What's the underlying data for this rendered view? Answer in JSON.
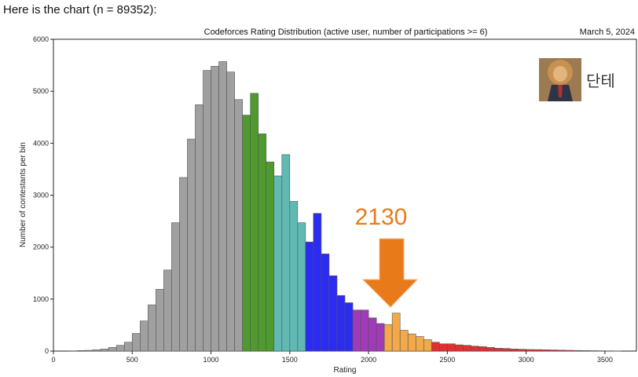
{
  "intro_text": "Here is the chart (n = 89352):",
  "chart_data": {
    "type": "bar",
    "title": "Codeforces Rating Distribution (active user, number of participations >= 6)",
    "date": "March 5, 2024",
    "xlabel": "Rating",
    "ylabel": "Number of contestants per bin",
    "xlim": [
      0,
      3700
    ],
    "ylim": [
      0,
      6000
    ],
    "xticks": [
      "0",
      "500",
      "1000",
      "1500",
      "2000",
      "2500",
      "3000",
      "3500"
    ],
    "xtick_values": [
      0,
      500,
      1000,
      1500,
      2000,
      2500,
      3000,
      3500
    ],
    "yticks": [
      "0",
      "1000",
      "2000",
      "3000",
      "4000",
      "5000",
      "6000"
    ],
    "ytick_values": [
      0,
      1000,
      2000,
      3000,
      4000,
      5000,
      6000
    ],
    "bin_width": 50,
    "bins_start": [
      100,
      150,
      200,
      250,
      300,
      350,
      400,
      450,
      500,
      550,
      600,
      650,
      700,
      750,
      800,
      850,
      900,
      950,
      1000,
      1050,
      1100,
      1150,
      1200,
      1250,
      1300,
      1350,
      1400,
      1450,
      1500,
      1550,
      1600,
      1650,
      1700,
      1750,
      1800,
      1850,
      1900,
      1950,
      2000,
      2050,
      2100,
      2150,
      2200,
      2250,
      2300,
      2350,
      2400,
      2450,
      2500,
      2550,
      2600,
      2650,
      2700,
      2750,
      2800,
      2850,
      2900,
      2950,
      3000,
      3050,
      3100,
      3150,
      3200,
      3250,
      3300,
      3350,
      3400,
      3450,
      3500,
      3550
    ],
    "values": [
      5,
      10,
      15,
      25,
      40,
      70,
      110,
      170,
      340,
      580,
      890,
      1190,
      1560,
      2470,
      3340,
      4080,
      4740,
      5400,
      5480,
      5570,
      5370,
      4840,
      4540,
      4960,
      4180,
      3640,
      3370,
      3780,
      2880,
      2470,
      2100,
      2650,
      1870,
      1450,
      1070,
      930,
      790,
      790,
      640,
      530,
      510,
      730,
      400,
      330,
      280,
      220,
      170,
      140,
      140,
      120,
      110,
      95,
      85,
      70,
      55,
      50,
      40,
      35,
      30,
      28,
      25,
      22,
      18,
      15,
      12,
      10,
      8,
      6,
      5,
      3
    ],
    "color_groups": [
      {
        "from": 0,
        "to": 1200,
        "color": "#a0a0a0"
      },
      {
        "from": 1200,
        "to": 1400,
        "color": "#4f9a2f"
      },
      {
        "from": 1400,
        "to": 1600,
        "color": "#60b9b2"
      },
      {
        "from": 1600,
        "to": 1900,
        "color": "#2b2bf2"
      },
      {
        "from": 1900,
        "to": 2100,
        "color": "#a03ab8"
      },
      {
        "from": 2100,
        "to": 2400,
        "color": "#f3a94a"
      },
      {
        "from": 2400,
        "to": 4000,
        "color": "#e03030"
      }
    ],
    "annotation": {
      "text": "2130",
      "x_value": 2130,
      "color": "#e87a1a"
    }
  },
  "watermark": {
    "text": "단테",
    "avatar": "lion-in-suit-avatar"
  }
}
